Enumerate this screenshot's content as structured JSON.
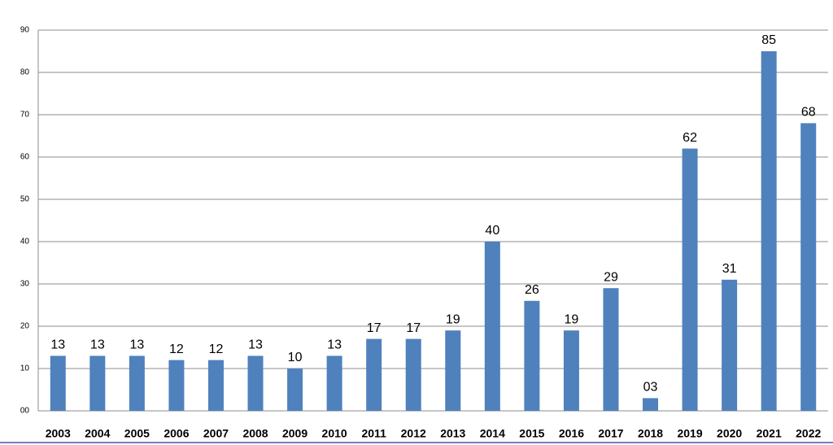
{
  "chart_data": {
    "type": "bar",
    "categories": [
      "2003",
      "2004",
      "2005",
      "2006",
      "2007",
      "2008",
      "2009",
      "2010",
      "2011",
      "2012",
      "2013",
      "2014",
      "2015",
      "2016",
      "2017",
      "2018",
      "2019",
      "2020",
      "2021",
      "2022"
    ],
    "values": [
      13,
      13,
      13,
      12,
      12,
      13,
      10,
      13,
      17,
      17,
      19,
      40,
      26,
      19,
      29,
      3,
      62,
      31,
      85,
      68
    ],
    "value_labels": [
      "13",
      "13",
      "13",
      "12",
      "12",
      "13",
      "10",
      "13",
      "17",
      "17",
      "19",
      "40",
      "26",
      "19",
      "29",
      "03",
      "62",
      "31",
      "85",
      "68"
    ],
    "color": "#4f81bd",
    "ylim": [
      0,
      90
    ],
    "yticks": [
      {
        "value": 0,
        "label": "00"
      },
      10,
      20,
      30,
      40,
      50,
      60,
      70,
      80,
      90
    ],
    "grid": true
  }
}
